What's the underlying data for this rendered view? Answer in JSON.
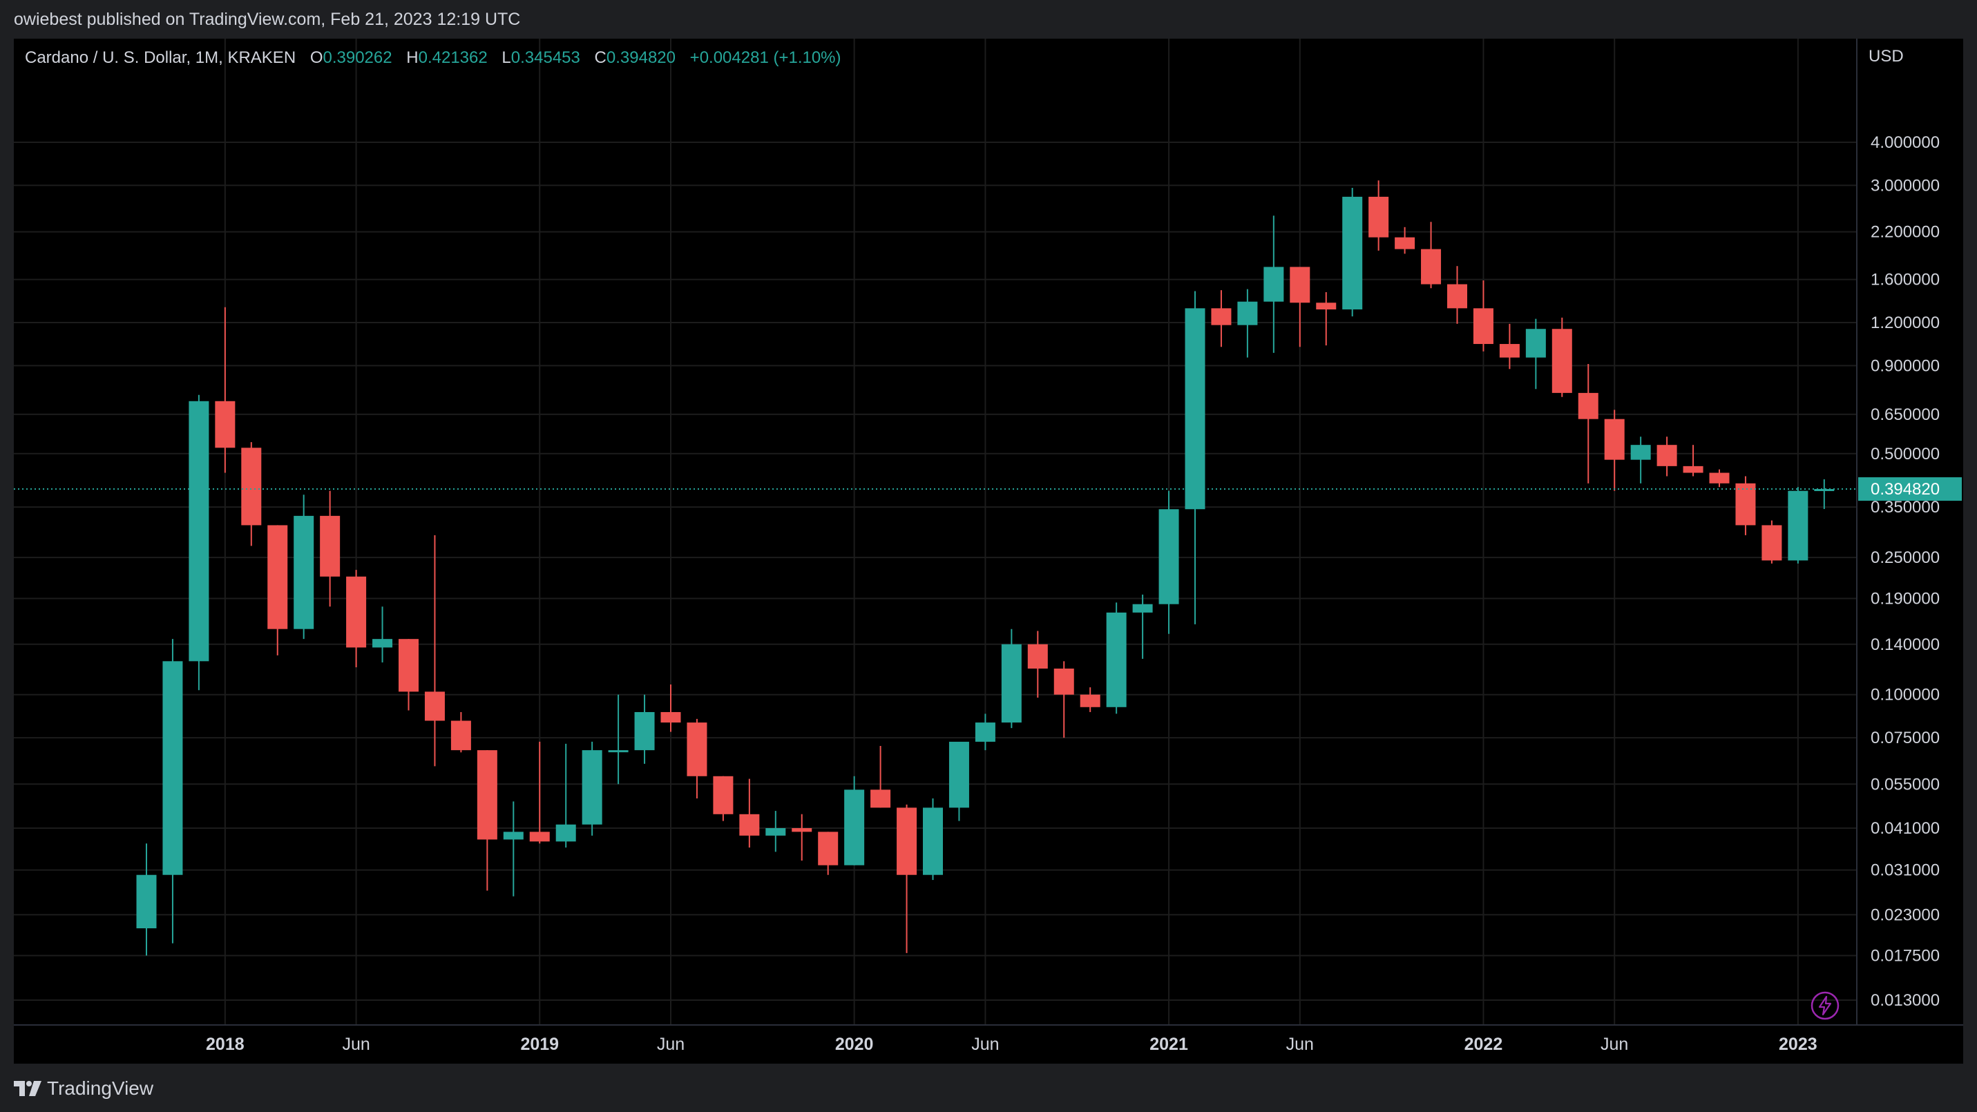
{
  "header": {
    "publisher": "owiebest published on TradingView.com, Feb 21, 2023 12:19 UTC"
  },
  "legend": {
    "symbol": "Cardano / U. S. Dollar, 1M, KRAKEN",
    "o_label": "O",
    "o_value": "0.390262",
    "h_label": "H",
    "h_value": "0.421362",
    "l_label": "L",
    "l_value": "0.345453",
    "c_label": "C",
    "c_value": "0.394820",
    "change": "+0.004281 (+1.10%)"
  },
  "footer": {
    "brand": "TradingView"
  },
  "icons": {
    "logo": "tradingview-logo-icon",
    "flash": "lightning-icon"
  },
  "colors": {
    "up": "#26a69a",
    "down": "#ef5350",
    "grid": "#1c1c1c",
    "text": "#d1d4dc",
    "price_label_bg": "#26a69a",
    "flash": "#9c27b0"
  },
  "chart_data": {
    "type": "candlestick",
    "currency": "USD",
    "scale": "log",
    "grid": true,
    "last_price": 0.39482,
    "last_price_label": "0.394820",
    "y_ticks": [
      "4.000000",
      "3.000000",
      "2.200000",
      "1.600000",
      "1.200000",
      "0.900000",
      "0.650000",
      "0.500000",
      "0.350000",
      "0.250000",
      "0.190000",
      "0.140000",
      "0.100000",
      "0.075000",
      "0.055000",
      "0.041000",
      "0.031000",
      "0.023000",
      "0.017500",
      "0.013000"
    ],
    "x_ticks": [
      {
        "label": "2018",
        "date": "2018-01",
        "major": true
      },
      {
        "label": "Jun",
        "date": "2018-06",
        "major": false
      },
      {
        "label": "2019",
        "date": "2019-01",
        "major": true
      },
      {
        "label": "Jun",
        "date": "2019-06",
        "major": false
      },
      {
        "label": "2020",
        "date": "2020-01",
        "major": true
      },
      {
        "label": "Jun",
        "date": "2020-06",
        "major": false
      },
      {
        "label": "2021",
        "date": "2021-01",
        "major": true
      },
      {
        "label": "Jun",
        "date": "2021-06",
        "major": false
      },
      {
        "label": "2022",
        "date": "2022-01",
        "major": true
      },
      {
        "label": "Jun",
        "date": "2022-06",
        "major": false
      },
      {
        "label": "2023",
        "date": "2023-01",
        "major": true
      }
    ],
    "candles": [
      {
        "date": "2017-10",
        "o": 0.021,
        "h": 0.037,
        "l": 0.0175,
        "c": 0.03
      },
      {
        "date": "2017-11",
        "o": 0.03,
        "h": 0.145,
        "l": 0.019,
        "c": 0.125
      },
      {
        "date": "2017-12",
        "o": 0.125,
        "h": 0.74,
        "l": 0.103,
        "c": 0.71
      },
      {
        "date": "2018-01",
        "o": 0.71,
        "h": 1.33,
        "l": 0.44,
        "c": 0.52
      },
      {
        "date": "2018-02",
        "o": 0.52,
        "h": 0.54,
        "l": 0.27,
        "c": 0.31
      },
      {
        "date": "2018-03",
        "o": 0.31,
        "h": 0.31,
        "l": 0.13,
        "c": 0.155
      },
      {
        "date": "2018-04",
        "o": 0.155,
        "h": 0.38,
        "l": 0.145,
        "c": 0.33
      },
      {
        "date": "2018-05",
        "o": 0.33,
        "h": 0.39,
        "l": 0.18,
        "c": 0.22
      },
      {
        "date": "2018-06",
        "o": 0.22,
        "h": 0.23,
        "l": 0.12,
        "c": 0.137
      },
      {
        "date": "2018-07",
        "o": 0.137,
        "h": 0.18,
        "l": 0.124,
        "c": 0.145
      },
      {
        "date": "2018-08",
        "o": 0.145,
        "h": 0.145,
        "l": 0.09,
        "c": 0.102
      },
      {
        "date": "2018-09",
        "o": 0.102,
        "h": 0.29,
        "l": 0.062,
        "c": 0.084
      },
      {
        "date": "2018-10",
        "o": 0.084,
        "h": 0.089,
        "l": 0.068,
        "c": 0.069
      },
      {
        "date": "2018-11",
        "o": 0.069,
        "h": 0.069,
        "l": 0.027,
        "c": 0.038
      },
      {
        "date": "2018-12",
        "o": 0.038,
        "h": 0.049,
        "l": 0.026,
        "c": 0.04
      },
      {
        "date": "2019-01",
        "o": 0.04,
        "h": 0.073,
        "l": 0.037,
        "c": 0.0375
      },
      {
        "date": "2019-02",
        "o": 0.0375,
        "h": 0.072,
        "l": 0.036,
        "c": 0.042
      },
      {
        "date": "2019-03",
        "o": 0.042,
        "h": 0.073,
        "l": 0.039,
        "c": 0.069
      },
      {
        "date": "2019-04",
        "o": 0.069,
        "h": 0.1,
        "l": 0.055,
        "c": 0.069
      },
      {
        "date": "2019-05",
        "o": 0.069,
        "h": 0.1,
        "l": 0.063,
        "c": 0.089
      },
      {
        "date": "2019-06",
        "o": 0.089,
        "h": 0.107,
        "l": 0.078,
        "c": 0.083
      },
      {
        "date": "2019-07",
        "o": 0.083,
        "h": 0.085,
        "l": 0.05,
        "c": 0.058
      },
      {
        "date": "2019-08",
        "o": 0.058,
        "h": 0.058,
        "l": 0.043,
        "c": 0.045
      },
      {
        "date": "2019-09",
        "o": 0.045,
        "h": 0.057,
        "l": 0.036,
        "c": 0.039
      },
      {
        "date": "2019-10",
        "o": 0.039,
        "h": 0.046,
        "l": 0.035,
        "c": 0.041
      },
      {
        "date": "2019-11",
        "o": 0.041,
        "h": 0.045,
        "l": 0.033,
        "c": 0.04
      },
      {
        "date": "2019-12",
        "o": 0.04,
        "h": 0.04,
        "l": 0.03,
        "c": 0.032
      },
      {
        "date": "2020-01",
        "o": 0.032,
        "h": 0.058,
        "l": 0.032,
        "c": 0.053
      },
      {
        "date": "2020-02",
        "o": 0.053,
        "h": 0.071,
        "l": 0.047,
        "c": 0.047
      },
      {
        "date": "2020-03",
        "o": 0.047,
        "h": 0.048,
        "l": 0.0178,
        "c": 0.03
      },
      {
        "date": "2020-04",
        "o": 0.03,
        "h": 0.05,
        "l": 0.029,
        "c": 0.047
      },
      {
        "date": "2020-05",
        "o": 0.047,
        "h": 0.06,
        "l": 0.043,
        "c": 0.073
      },
      {
        "date": "2020-06",
        "o": 0.073,
        "h": 0.088,
        "l": 0.069,
        "c": 0.083
      },
      {
        "date": "2020-07",
        "o": 0.083,
        "h": 0.155,
        "l": 0.08,
        "c": 0.14
      },
      {
        "date": "2020-08",
        "o": 0.14,
        "h": 0.153,
        "l": 0.098,
        "c": 0.119
      },
      {
        "date": "2020-09",
        "o": 0.119,
        "h": 0.125,
        "l": 0.075,
        "c": 0.1
      },
      {
        "date": "2020-10",
        "o": 0.1,
        "h": 0.105,
        "l": 0.089,
        "c": 0.092
      },
      {
        "date": "2020-11",
        "o": 0.092,
        "h": 0.185,
        "l": 0.088,
        "c": 0.173
      },
      {
        "date": "2020-12",
        "o": 0.173,
        "h": 0.195,
        "l": 0.127,
        "c": 0.183
      },
      {
        "date": "2021-01",
        "o": 0.183,
        "h": 0.39,
        "l": 0.15,
        "c": 0.345
      },
      {
        "date": "2021-02",
        "o": 0.345,
        "h": 1.48,
        "l": 0.16,
        "c": 1.32
      },
      {
        "date": "2021-03",
        "o": 1.32,
        "h": 1.49,
        "l": 1.02,
        "c": 1.18
      },
      {
        "date": "2021-04",
        "o": 1.18,
        "h": 1.5,
        "l": 0.95,
        "c": 1.38
      },
      {
        "date": "2021-05",
        "o": 1.38,
        "h": 2.45,
        "l": 0.98,
        "c": 1.74
      },
      {
        "date": "2021-06",
        "o": 1.74,
        "h": 1.74,
        "l": 1.02,
        "c": 1.37
      },
      {
        "date": "2021-07",
        "o": 1.37,
        "h": 1.47,
        "l": 1.03,
        "c": 1.31
      },
      {
        "date": "2021-08",
        "o": 1.31,
        "h": 2.95,
        "l": 1.25,
        "c": 2.78
      },
      {
        "date": "2021-09",
        "o": 2.78,
        "h": 3.1,
        "l": 1.94,
        "c": 2.12
      },
      {
        "date": "2021-10",
        "o": 2.12,
        "h": 2.27,
        "l": 1.9,
        "c": 1.96
      },
      {
        "date": "2021-11",
        "o": 1.96,
        "h": 2.35,
        "l": 1.51,
        "c": 1.55
      },
      {
        "date": "2021-12",
        "o": 1.55,
        "h": 1.75,
        "l": 1.19,
        "c": 1.32
      },
      {
        "date": "2022-01",
        "o": 1.32,
        "h": 1.59,
        "l": 0.99,
        "c": 1.04
      },
      {
        "date": "2022-02",
        "o": 1.04,
        "h": 1.19,
        "l": 0.88,
        "c": 0.95
      },
      {
        "date": "2022-03",
        "o": 0.95,
        "h": 1.23,
        "l": 0.77,
        "c": 1.15
      },
      {
        "date": "2022-04",
        "o": 1.15,
        "h": 1.24,
        "l": 0.73,
        "c": 0.75
      },
      {
        "date": "2022-05",
        "o": 0.75,
        "h": 0.91,
        "l": 0.41,
        "c": 0.63
      },
      {
        "date": "2022-06",
        "o": 0.63,
        "h": 0.67,
        "l": 0.39,
        "c": 0.48
      },
      {
        "date": "2022-07",
        "o": 0.48,
        "h": 0.56,
        "l": 0.41,
        "c": 0.53
      },
      {
        "date": "2022-08",
        "o": 0.53,
        "h": 0.56,
        "l": 0.43,
        "c": 0.46
      },
      {
        "date": "2022-09",
        "o": 0.46,
        "h": 0.53,
        "l": 0.43,
        "c": 0.44
      },
      {
        "date": "2022-10",
        "o": 0.44,
        "h": 0.45,
        "l": 0.4,
        "c": 0.41
      },
      {
        "date": "2022-11",
        "o": 0.41,
        "h": 0.43,
        "l": 0.29,
        "c": 0.31
      },
      {
        "date": "2022-12",
        "o": 0.31,
        "h": 0.32,
        "l": 0.24,
        "c": 0.245
      },
      {
        "date": "2023-01",
        "o": 0.245,
        "h": 0.4,
        "l": 0.24,
        "c": 0.39
      },
      {
        "date": "2023-02",
        "o": 0.390262,
        "h": 0.421362,
        "l": 0.345453,
        "c": 0.39482
      }
    ]
  }
}
